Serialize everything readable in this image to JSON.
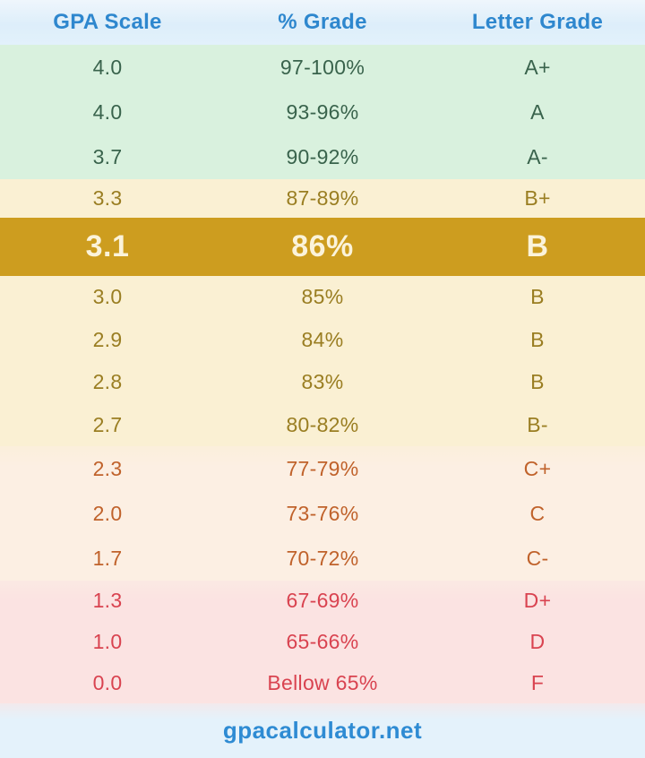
{
  "header": {
    "columns": [
      "GPA Scale",
      "% Grade",
      "Letter Grade"
    ]
  },
  "footer": {
    "site_label": "gpacalculator.net"
  },
  "colors": {
    "accent_blue": "#2E87CE",
    "header_bg": "#E1F0FA",
    "section_a_bg": "#D9F1DE",
    "section_a_text": "#39634C",
    "section_b_bg": "#FAF0D3",
    "section_b_text": "#9A7E22",
    "highlight_bg": "#CD9D1F",
    "highlight_text": "#FBF3DA",
    "section_c_bg": "#FCEFE3",
    "section_c_text": "#C0622B",
    "section_d_bg": "#FBE3E2",
    "section_d_text": "#D94350",
    "footer_bg": "#E4F2FB"
  },
  "chart_data": {
    "type": "table",
    "title": "GPA Scale to Percent Grade to Letter Grade conversion",
    "columns": [
      "GPA Scale",
      "% Grade",
      "Letter Grade"
    ],
    "rows": [
      [
        "4.0",
        "97-100%",
        "A+"
      ],
      [
        "4.0",
        "93-96%",
        "A"
      ],
      [
        "3.7",
        "90-92%",
        "A-"
      ],
      [
        "3.3",
        "87-89%",
        "B+"
      ],
      [
        "3.1",
        "86%",
        "B"
      ],
      [
        "3.0",
        "85%",
        "B"
      ],
      [
        "2.9",
        "84%",
        "B"
      ],
      [
        "2.8",
        "83%",
        "B"
      ],
      [
        "2.7",
        "80-82%",
        "B-"
      ],
      [
        "2.3",
        "77-79%",
        "C+"
      ],
      [
        "2.0",
        "73-76%",
        "C"
      ],
      [
        "1.7",
        "70-72%",
        "C-"
      ],
      [
        "1.3",
        "67-69%",
        "D+"
      ],
      [
        "1.0",
        "65-66%",
        "D"
      ],
      [
        "0.0",
        "Bellow 65%",
        "F"
      ]
    ],
    "highlight_index": 4,
    "highlighted_row": [
      "3.1",
      "86%",
      "B"
    ],
    "footer_text": "gpacalculator.net",
    "legend_position": "none",
    "grid": false
  }
}
